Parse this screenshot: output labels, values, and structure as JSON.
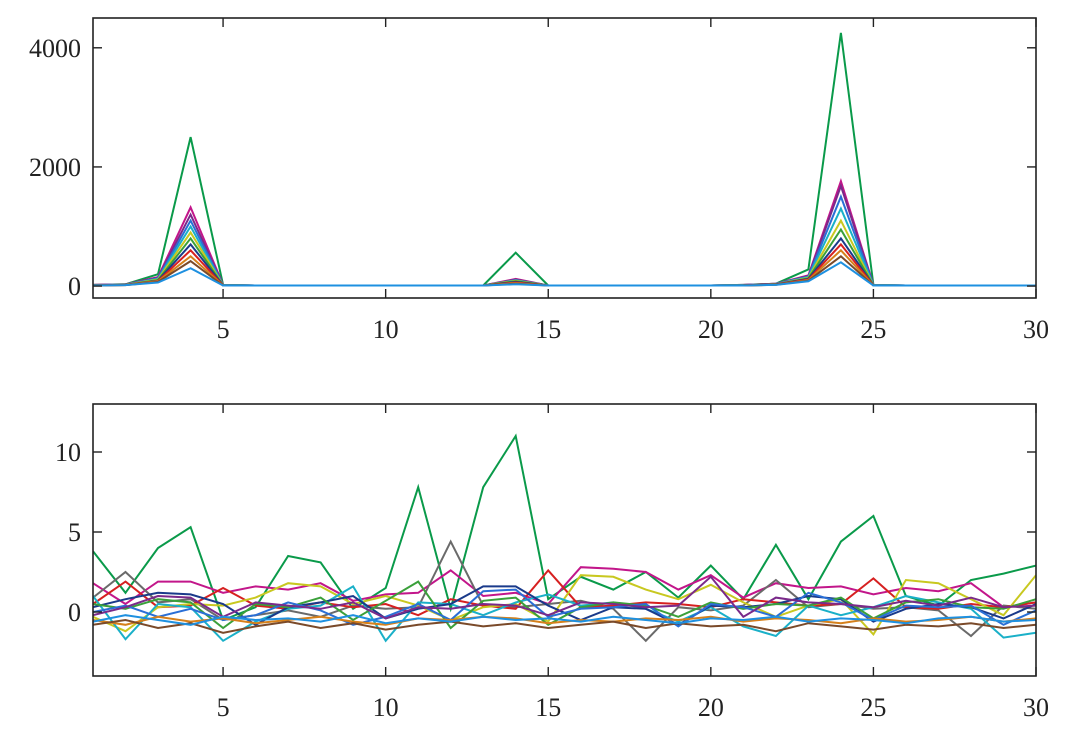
{
  "chart_data": [
    {
      "type": "line",
      "xlim": [
        1,
        30
      ],
      "ylim": [
        -200,
        4500
      ],
      "xticks": [
        5,
        10,
        15,
        20,
        25,
        30
      ],
      "yticks": [
        0,
        2000,
        4000
      ],
      "x": [
        1,
        2,
        3,
        4,
        5,
        6,
        7,
        8,
        9,
        10,
        11,
        12,
        13,
        14,
        15,
        16,
        17,
        18,
        19,
        20,
        21,
        22,
        23,
        24,
        25,
        26,
        27,
        28,
        29,
        30
      ],
      "series": [
        {
          "color": "#0a9a4a",
          "values": [
            20,
            30,
            200,
            2500,
            20,
            10,
            10,
            10,
            10,
            10,
            10,
            10,
            10,
            560,
            10,
            10,
            10,
            10,
            10,
            10,
            20,
            40,
            280,
            4250,
            20,
            10,
            10,
            10,
            10,
            10
          ]
        },
        {
          "color": "#c2168a",
          "values": [
            20,
            30,
            150,
            1320,
            20,
            10,
            10,
            10,
            10,
            10,
            10,
            10,
            10,
            120,
            10,
            10,
            10,
            10,
            10,
            10,
            20,
            40,
            180,
            1760,
            20,
            10,
            10,
            10,
            10,
            10
          ]
        },
        {
          "color": "#7a2a8a",
          "values": [
            18,
            28,
            140,
            1200,
            18,
            10,
            10,
            10,
            10,
            10,
            10,
            10,
            10,
            110,
            10,
            10,
            10,
            10,
            10,
            10,
            18,
            38,
            170,
            1680,
            18,
            10,
            10,
            10,
            10,
            10
          ]
        },
        {
          "color": "#2a6fd6",
          "values": [
            16,
            26,
            130,
            1100,
            16,
            10,
            10,
            10,
            10,
            10,
            10,
            10,
            10,
            100,
            10,
            10,
            10,
            10,
            10,
            10,
            16,
            36,
            160,
            1500,
            16,
            10,
            10,
            10,
            10,
            10
          ]
        },
        {
          "color": "#1ab0c8",
          "values": [
            15,
            25,
            120,
            1000,
            15,
            10,
            10,
            10,
            10,
            10,
            10,
            10,
            10,
            95,
            10,
            10,
            10,
            10,
            10,
            10,
            15,
            34,
            150,
            1300,
            15,
            10,
            10,
            10,
            10,
            10
          ]
        },
        {
          "color": "#c8c820",
          "values": [
            14,
            24,
            110,
            900,
            14,
            10,
            10,
            10,
            10,
            10,
            10,
            10,
            10,
            90,
            10,
            10,
            10,
            10,
            10,
            10,
            14,
            32,
            140,
            1100,
            14,
            10,
            10,
            10,
            10,
            10
          ]
        },
        {
          "color": "#3aa03a",
          "values": [
            13,
            22,
            100,
            800,
            13,
            10,
            10,
            10,
            10,
            10,
            10,
            10,
            10,
            80,
            10,
            10,
            10,
            10,
            10,
            10,
            13,
            30,
            130,
            950,
            13,
            10,
            10,
            10,
            10,
            10
          ]
        },
        {
          "color": "#1a3a8a",
          "values": [
            12,
            20,
            90,
            700,
            12,
            10,
            10,
            10,
            10,
            10,
            10,
            10,
            10,
            70,
            10,
            10,
            10,
            10,
            10,
            10,
            12,
            28,
            120,
            800,
            12,
            10,
            10,
            10,
            10,
            10
          ]
        },
        {
          "color": "#d62020",
          "values": [
            11,
            19,
            85,
            600,
            11,
            10,
            10,
            10,
            10,
            10,
            10,
            10,
            10,
            60,
            10,
            10,
            10,
            10,
            10,
            10,
            11,
            26,
            110,
            700,
            11,
            10,
            10,
            10,
            10,
            10
          ]
        },
        {
          "color": "#d6801a",
          "values": [
            10,
            18,
            80,
            500,
            10,
            10,
            10,
            10,
            10,
            10,
            10,
            10,
            10,
            50,
            10,
            10,
            10,
            10,
            10,
            10,
            10,
            24,
            100,
            600,
            10,
            10,
            10,
            10,
            10,
            10
          ]
        },
        {
          "color": "#7a4a2a",
          "values": [
            10,
            17,
            70,
            420,
            10,
            10,
            10,
            10,
            10,
            10,
            10,
            10,
            10,
            40,
            10,
            10,
            10,
            10,
            10,
            10,
            10,
            22,
            90,
            500,
            10,
            10,
            10,
            10,
            10,
            10
          ]
        },
        {
          "color": "#1e90e0",
          "values": [
            10,
            16,
            60,
            300,
            10,
            10,
            10,
            10,
            10,
            10,
            10,
            10,
            10,
            30,
            10,
            10,
            10,
            10,
            10,
            10,
            10,
            20,
            80,
            400,
            10,
            10,
            10,
            10,
            10,
            10
          ]
        }
      ]
    },
    {
      "type": "line",
      "xlim": [
        1,
        30
      ],
      "ylim": [
        -4,
        13
      ],
      "xticks": [
        5,
        10,
        15,
        20,
        25,
        30
      ],
      "yticks": [
        0,
        5,
        10
      ],
      "x": [
        1,
        2,
        3,
        4,
        5,
        6,
        7,
        8,
        9,
        10,
        11,
        12,
        13,
        14,
        15,
        16,
        17,
        18,
        19,
        20,
        21,
        22,
        23,
        24,
        25,
        26,
        27,
        28,
        29,
        30
      ],
      "series": [
        {
          "color": "#0a9a4a",
          "values": [
            3.8,
            1.2,
            4.0,
            5.3,
            -0.5,
            0.3,
            3.5,
            3.1,
            0.2,
            1.5,
            7.8,
            0.2,
            7.8,
            11.0,
            0.8,
            2.2,
            1.4,
            2.5,
            0.9,
            2.9,
            0.8,
            4.2,
            0.8,
            4.4,
            6.0,
            1.0,
            0.4,
            2.0,
            2.4,
            2.9
          ]
        },
        {
          "color": "#c2168a",
          "values": [
            1.8,
            0.5,
            1.9,
            1.9,
            1.2,
            1.6,
            1.4,
            1.8,
            0.7,
            1.1,
            1.2,
            2.6,
            1.0,
            1.2,
            0.5,
            2.8,
            2.7,
            2.5,
            1.4,
            2.3,
            0.9,
            1.8,
            1.5,
            1.6,
            1.1,
            1.5,
            1.3,
            1.8,
            0.3,
            0.6
          ]
        },
        {
          "color": "#6a6a6a",
          "values": [
            0.9,
            2.5,
            0.6,
            0.8,
            -0.5,
            -0.2,
            0.1,
            -0.3,
            0.4,
            0.2,
            0.3,
            4.4,
            0.4,
            0.3,
            0.5,
            0.7,
            0.2,
            -1.8,
            0.3,
            0.1,
            0.4,
            2.0,
            0.3,
            0.5,
            0.2,
            0.3,
            0.1,
            -1.5,
            0.4,
            0.2
          ]
        },
        {
          "color": "#d62020",
          "values": [
            0.5,
            1.9,
            0.3,
            0.4,
            1.5,
            0.4,
            0.2,
            0.6,
            0.3,
            0.5,
            -0.2,
            0.8,
            0.4,
            0.2,
            2.6,
            0.3,
            0.4,
            0.6,
            0.5,
            0.3,
            0.8,
            0.6,
            0.4,
            0.5,
            2.1,
            0.3,
            0.2,
            0.5,
            0.3,
            0.6
          ]
        },
        {
          "color": "#c8c820",
          "values": [
            -0.3,
            -1.2,
            0.3,
            0.5,
            0.4,
            0.9,
            1.8,
            1.6,
            0.5,
            1.0,
            0.4,
            -0.5,
            0.3,
            0.5,
            -0.6,
            2.3,
            2.2,
            1.4,
            0.8,
            1.7,
            0.6,
            -0.3,
            0.4,
            0.8,
            -1.4,
            2.0,
            1.8,
            0.8,
            -0.2,
            2.3
          ]
        },
        {
          "color": "#1ab0c8",
          "values": [
            1.0,
            -1.7,
            0.5,
            0.3,
            -1.8,
            -0.6,
            0.2,
            0.4,
            1.6,
            -1.8,
            0.6,
            0.5,
            -0.2,
            0.6,
            1.1,
            0.4,
            0.6,
            0.2,
            -0.6,
            0.3,
            -0.9,
            -1.5,
            0.4,
            -0.2,
            0.3,
            1.0,
            0.6,
            0.2,
            -1.6,
            -1.3
          ]
        },
        {
          "color": "#1a3a8a",
          "values": [
            0.3,
            0.8,
            1.2,
            1.1,
            0.5,
            -0.8,
            0.3,
            0.6,
            1.0,
            -0.4,
            0.2,
            0.5,
            1.6,
            1.6,
            0.4,
            -0.5,
            0.3,
            0.2,
            -0.8,
            0.4,
            0.3,
            0.5,
            1.0,
            0.8,
            -0.6,
            0.2,
            0.5,
            0.3,
            -0.4,
            0.5
          ]
        },
        {
          "color": "#3aa03a",
          "values": [
            0.5,
            0.2,
            0.8,
            0.6,
            -1.0,
            0.5,
            0.3,
            0.9,
            -0.5,
            0.7,
            1.9,
            -1.0,
            0.7,
            0.9,
            -0.8,
            0.3,
            0.6,
            0.4,
            -0.3,
            0.6,
            0.2,
            0.5,
            0.4,
            0.9,
            -0.4,
            0.6,
            0.8,
            0.3,
            0.2,
            0.8
          ]
        },
        {
          "color": "#2a6fd6",
          "values": [
            0.0,
            0.4,
            -0.3,
            0.2,
            -0.5,
            -0.2,
            0.6,
            0.1,
            -0.8,
            -0.3,
            0.5,
            -0.5,
            1.3,
            1.4,
            -0.3,
            0.2,
            0.3,
            0.5,
            -0.9,
            0.5,
            0.3,
            -0.3,
            1.2,
            0.6,
            -0.5,
            0.4,
            0.3,
            0.4,
            -0.8,
            0.1
          ]
        },
        {
          "color": "#d6801a",
          "values": [
            -0.5,
            -0.8,
            -0.3,
            -0.6,
            -0.4,
            -0.7,
            -0.5,
            -0.3,
            -0.6,
            -0.8,
            -0.4,
            -0.5,
            -0.3,
            -0.4,
            -0.7,
            -0.5,
            -0.6,
            -0.4,
            -0.5,
            -0.3,
            -0.6,
            -0.4,
            -0.5,
            -0.7,
            -0.4,
            -0.6,
            -0.5,
            -0.3,
            -0.6,
            -0.4
          ]
        },
        {
          "color": "#7a2a8a",
          "values": [
            -0.2,
            0.3,
            1.0,
            0.9,
            -0.3,
            0.6,
            0.4,
            0.2,
            0.6,
            -0.4,
            0.3,
            0.2,
            0.5,
            0.4,
            -0.2,
            0.6,
            0.5,
            0.3,
            0.4,
            2.2,
            -0.3,
            0.9,
            0.6,
            0.5,
            0.3,
            0.7,
            0.4,
            0.9,
            0.3,
            0.4
          ]
        },
        {
          "color": "#7a4a2a",
          "values": [
            -0.8,
            -0.5,
            -1.0,
            -0.7,
            -1.3,
            -0.9,
            -0.6,
            -1.0,
            -0.7,
            -1.1,
            -0.8,
            -0.6,
            -0.9,
            -0.7,
            -1.0,
            -0.8,
            -0.6,
            -1.0,
            -0.7,
            -0.9,
            -0.8,
            -1.2,
            -0.7,
            -0.9,
            -1.1,
            -0.8,
            -0.9,
            -0.7,
            -1.0,
            -0.8
          ]
        },
        {
          "color": "#1e90e0",
          "values": [
            -0.6,
            -0.2,
            -0.5,
            -0.8,
            -0.3,
            -0.5,
            -0.4,
            -0.6,
            -0.2,
            -0.7,
            -0.4,
            -0.6,
            -0.3,
            -0.5,
            -0.4,
            -0.6,
            -0.3,
            -0.5,
            -0.7,
            -0.4,
            -0.5,
            -0.3,
            -0.6,
            -0.4,
            -0.5,
            -0.7,
            -0.4,
            -0.3,
            -0.6,
            -0.5
          ]
        }
      ]
    }
  ]
}
